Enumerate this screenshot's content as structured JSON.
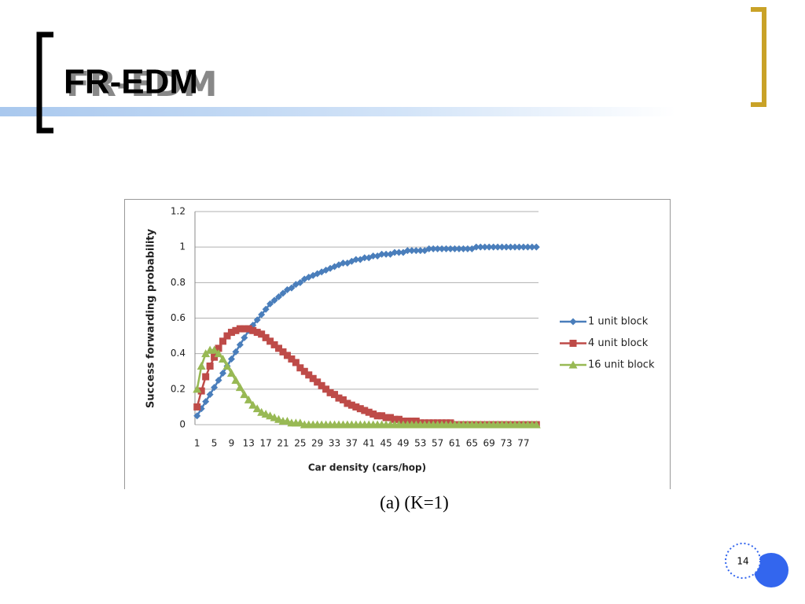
{
  "slide_title": "FR-EDM",
  "caption": "(a) (K=1)",
  "page_number": "14",
  "chart_data": {
    "type": "line",
    "x_label": "Car density (cars/hop)",
    "y_label": "Success forwarding probability",
    "categories": [
      "1",
      null,
      null,
      null,
      "5",
      null,
      null,
      null,
      "9",
      null,
      null,
      null,
      "13",
      null,
      null,
      null,
      "17",
      null,
      null,
      null,
      "21",
      null,
      null,
      null,
      "25",
      null,
      null,
      null,
      "29",
      null,
      null,
      null,
      "33",
      null,
      null,
      null,
      "37",
      null,
      null,
      null,
      "41",
      null,
      null,
      null,
      "45",
      null,
      null,
      null,
      "49",
      null,
      null,
      null,
      "53",
      null,
      null,
      null,
      "57",
      null,
      null,
      null,
      "61",
      null,
      null,
      null,
      "65",
      null,
      null,
      null,
      "69",
      null,
      null,
      null,
      "73",
      null,
      null,
      null,
      "77",
      null,
      null,
      null
    ],
    "ylim": [
      0,
      1.2
    ],
    "yticks": [
      0,
      0.2,
      0.4,
      0.6,
      0.8,
      1,
      1.2
    ],
    "grid": true,
    "legend": "right",
    "series": [
      {
        "name": "1 unit block",
        "color": "#4a7ebb",
        "marker": "diamond",
        "values": [
          0.05,
          0.09,
          0.13,
          0.17,
          0.21,
          0.25,
          0.29,
          0.33,
          0.37,
          0.41,
          0.45,
          0.49,
          0.53,
          0.56,
          0.59,
          0.62,
          0.65,
          0.68,
          0.7,
          0.72,
          0.74,
          0.76,
          0.77,
          0.79,
          0.8,
          0.82,
          0.83,
          0.84,
          0.85,
          0.86,
          0.87,
          0.88,
          0.89,
          0.9,
          0.91,
          0.91,
          0.92,
          0.93,
          0.93,
          0.94,
          0.94,
          0.95,
          0.95,
          0.96,
          0.96,
          0.96,
          0.97,
          0.97,
          0.97,
          0.98,
          0.98,
          0.98,
          0.98,
          0.98,
          0.99,
          0.99,
          0.99,
          0.99,
          0.99,
          0.99,
          0.99,
          0.99,
          0.99,
          0.99,
          0.99,
          1,
          1,
          1,
          1,
          1,
          1,
          1,
          1,
          1,
          1,
          1,
          1,
          1,
          1,
          1
        ]
      },
      {
        "name": "4 unit block",
        "color": "#be4b48",
        "marker": "square",
        "values": [
          0.1,
          0.19,
          0.27,
          0.33,
          0.38,
          0.43,
          0.47,
          0.5,
          0.52,
          0.53,
          0.54,
          0.54,
          0.54,
          0.53,
          0.52,
          0.51,
          0.49,
          0.47,
          0.45,
          0.43,
          0.41,
          0.39,
          0.37,
          0.35,
          0.32,
          0.3,
          0.28,
          0.26,
          0.24,
          0.22,
          0.2,
          0.18,
          0.17,
          0.15,
          0.14,
          0.12,
          0.11,
          0.1,
          0.09,
          0.08,
          0.07,
          0.06,
          0.05,
          0.05,
          0.04,
          0.04,
          0.03,
          0.03,
          0.02,
          0.02,
          0.02,
          0.02,
          0.01,
          0.01,
          0.01,
          0.01,
          0.01,
          0.01,
          0.01,
          0.01,
          0,
          0,
          0,
          0,
          0,
          0,
          0,
          0,
          0,
          0,
          0,
          0,
          0,
          0,
          0,
          0,
          0,
          0,
          0,
          0
        ]
      },
      {
        "name": "16 unit block",
        "color": "#98b954",
        "marker": "triangle",
        "values": [
          0.2,
          0.33,
          0.4,
          0.42,
          0.42,
          0.4,
          0.37,
          0.33,
          0.29,
          0.25,
          0.21,
          0.17,
          0.14,
          0.11,
          0.09,
          0.07,
          0.06,
          0.05,
          0.04,
          0.03,
          0.02,
          0.02,
          0.01,
          0.01,
          0.01,
          0,
          0,
          0,
          0,
          0,
          0,
          0,
          0,
          0,
          0,
          0,
          0,
          0,
          0,
          0,
          0,
          0,
          0,
          0,
          0,
          0,
          0,
          0,
          0,
          0,
          0,
          0,
          0,
          0,
          0,
          0,
          0,
          0,
          0,
          0,
          0,
          0,
          0,
          0,
          0,
          0,
          0,
          0,
          0,
          0,
          0,
          0,
          0,
          0,
          0,
          0,
          0,
          0,
          0,
          0
        ]
      }
    ]
  }
}
